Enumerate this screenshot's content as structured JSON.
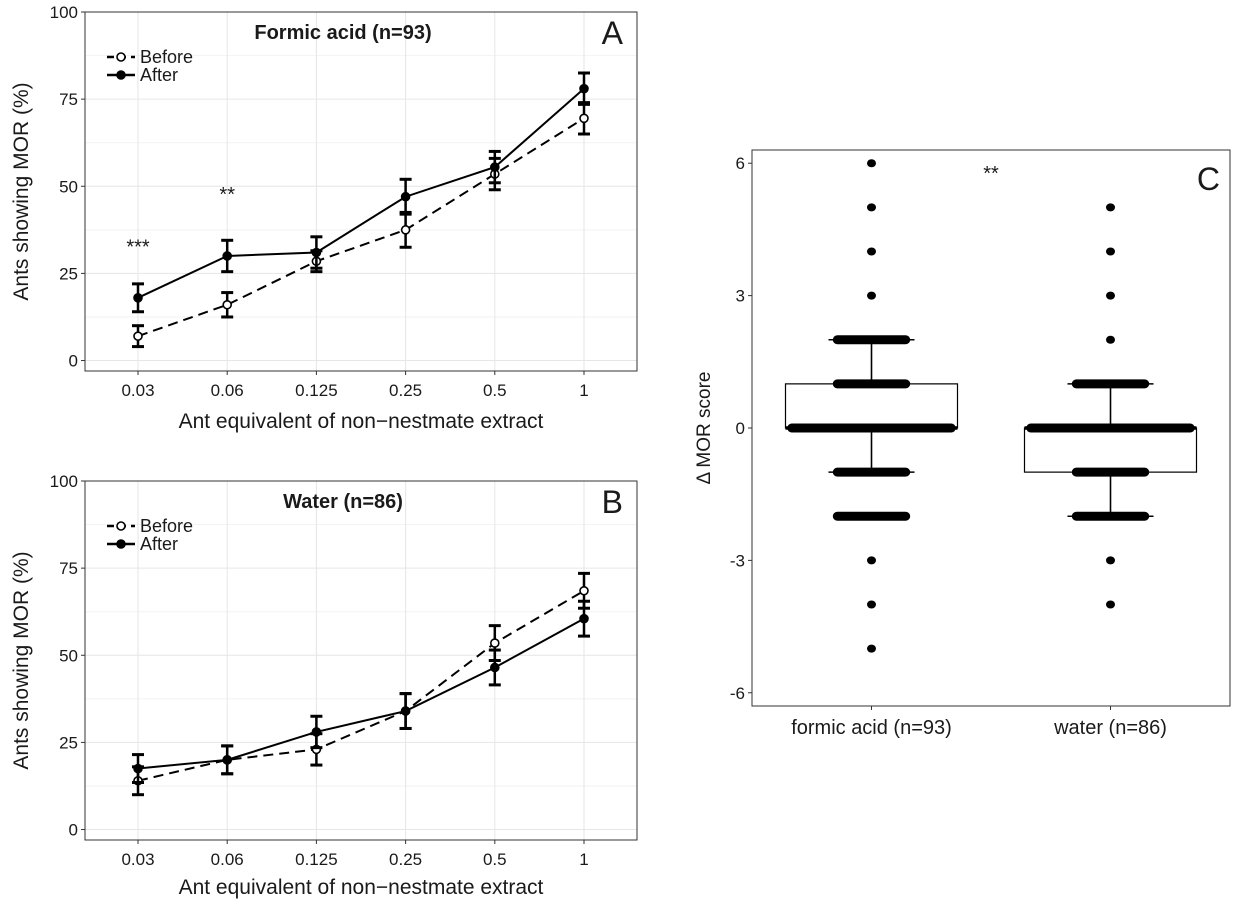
{
  "chart_data": [
    {
      "type": "line",
      "title": "Formic acid (n=93)",
      "panel_label": "A",
      "xlabel": "Ant equivalent of non−nestmate extract",
      "ylabel": "Ants showing MOR (%)",
      "categories": [
        "0.03",
        "0.06",
        "0.125",
        "0.25",
        "0.5",
        "1"
      ],
      "yticks": [
        0,
        25,
        50,
        75,
        100
      ],
      "ylim": [
        -3,
        100
      ],
      "grid": true,
      "legend_position": "top-left",
      "series": [
        {
          "name": "Before",
          "style": "dashed",
          "marker": "open-circle",
          "values": [
            7,
            16,
            28.5,
            37.5,
            53.5,
            69.5
          ],
          "errors": [
            3,
            3.5,
            3,
            5,
            4.5,
            4.5
          ]
        },
        {
          "name": "After",
          "style": "solid",
          "marker": "filled-circle",
          "values": [
            18,
            30,
            31,
            47,
            55.5,
            78
          ],
          "errors": [
            4,
            4.5,
            4.5,
            5,
            4.5,
            4.5
          ]
        }
      ],
      "annotations": [
        {
          "category": "0.03",
          "y": 33,
          "text": "***"
        },
        {
          "category": "0.06",
          "y": 48,
          "text": "**"
        }
      ]
    },
    {
      "type": "line",
      "title": "Water (n=86)",
      "panel_label": "B",
      "xlabel": "Ant equivalent of non−nestmate extract",
      "ylabel": "Ants showing MOR (%)",
      "categories": [
        "0.03",
        "0.06",
        "0.125",
        "0.25",
        "0.5",
        "1"
      ],
      "yticks": [
        0,
        25,
        50,
        75,
        100
      ],
      "ylim": [
        -3,
        100
      ],
      "grid": true,
      "legend_position": "top-left",
      "series": [
        {
          "name": "Before",
          "style": "dashed",
          "marker": "open-circle",
          "values": [
            14,
            20,
            23,
            34,
            53.5,
            68.5
          ],
          "errors": [
            4,
            4,
            4.5,
            5,
            5,
            5
          ]
        },
        {
          "name": "After",
          "style": "solid",
          "marker": "filled-circle",
          "values": [
            17.5,
            20,
            28,
            34,
            46.5,
            60.5
          ],
          "errors": [
            4,
            4,
            4.5,
            5,
            5,
            5
          ]
        }
      ],
      "annotations": []
    },
    {
      "type": "box",
      "panel_label": "C",
      "ylabel": "Δ MOR score",
      "categories": [
        "formic acid (n=93)",
        "water (n=86)"
      ],
      "yticks": [
        -6,
        -3,
        0,
        3,
        6
      ],
      "ylim": [
        -6.3,
        6.3
      ],
      "grid": false,
      "boxes": [
        {
          "name": "formic acid (n=93)",
          "q1": 0,
          "median": 0,
          "q3": 1,
          "whisker_low": -1,
          "whisker_high": 2,
          "points": [
            6,
            5,
            4,
            3,
            2,
            1,
            0,
            -1,
            -2,
            -3,
            -4,
            -5
          ]
        },
        {
          "name": "water (n=86)",
          "q1": -1,
          "median": 0,
          "q3": 0,
          "whisker_low": -2,
          "whisker_high": 1,
          "points": [
            5,
            4,
            3,
            2,
            1,
            0,
            -1,
            -2,
            -3,
            -4
          ]
        }
      ],
      "annotations": [
        {
          "y": 5.8,
          "text": "**"
        }
      ]
    }
  ]
}
